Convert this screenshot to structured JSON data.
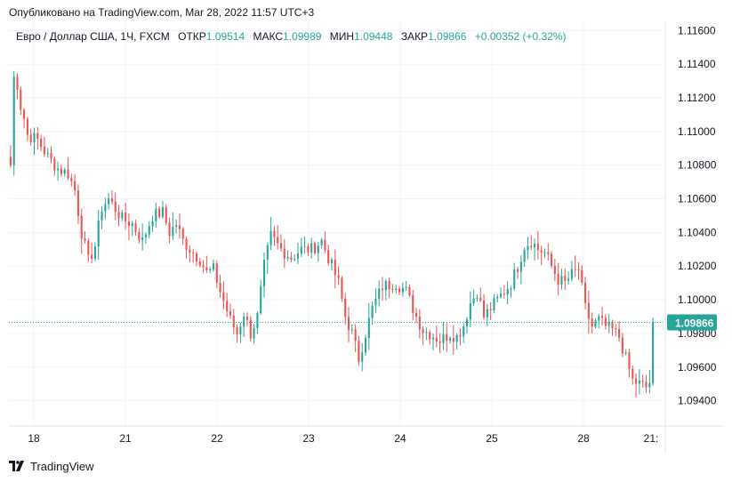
{
  "published_line": "Опубликовано на TradingView.com, Mar 28, 2022 11:57 UTC+3",
  "legend": {
    "symbol": "Евро / Доллар США, 1Ч, FXCM",
    "open_label": "ОТКР",
    "open_value": "1.09514",
    "high_label": "МАКС",
    "high_value": "1.09989",
    "low_label": "МИН",
    "low_value": "1.09448",
    "close_label": "ЗАКР",
    "close_value": "1.09866",
    "change": "+0.00352 (+0.32%)"
  },
  "last_price_label": "1.09866",
  "footer_brand": "TradingView",
  "colors": {
    "up": "#26a69a",
    "down": "#ef5350",
    "grid": "#f0f3fa",
    "axis_text": "#131722",
    "last_price_bg": "#26a69a"
  },
  "chart_data": {
    "type": "candlestick",
    "title": "Евро / Доллар США, 1Ч, FXCM",
    "y_ticks": [
      "1.09400",
      "1.09600",
      "1.09800",
      "1.10000",
      "1.10200",
      "1.10400",
      "1.10600",
      "1.10800",
      "1.11000",
      "1.11200",
      "1.11400",
      "1.11600"
    ],
    "x_ticks": [
      "18",
      "21",
      "22",
      "23",
      "24",
      "25",
      "28",
      "21:"
    ],
    "ylim": [
      1.0925,
      1.1166
    ],
    "last_price": 1.09866,
    "grid": true,
    "anchors": [
      [
        0,
        1.108
      ],
      [
        1,
        1.1132
      ],
      [
        2,
        1.1128
      ],
      [
        3,
        1.1115
      ],
      [
        4,
        1.1108
      ],
      [
        5,
        1.1098
      ],
      [
        8,
        1.1095
      ],
      [
        11,
        1.1085
      ],
      [
        14,
        1.1078
      ],
      [
        17,
        1.1075
      ],
      [
        19,
        1.1065
      ],
      [
        21,
        1.104
      ],
      [
        23,
        1.1023
      ],
      [
        25,
        1.1032
      ],
      [
        27,
        1.1055
      ],
      [
        29,
        1.106
      ],
      [
        33,
        1.1048
      ],
      [
        36,
        1.1045
      ],
      [
        39,
        1.1035
      ],
      [
        42,
        1.105
      ],
      [
        45,
        1.1052
      ],
      [
        47,
        1.104
      ],
      [
        49,
        1.1045
      ],
      [
        51,
        1.1035
      ],
      [
        54,
        1.1028
      ],
      [
        56,
        1.1024
      ],
      [
        58,
        1.1016
      ],
      [
        60,
        1.1018
      ],
      [
        62,
        1.1005
      ],
      [
        65,
        1.0988
      ],
      [
        67,
        1.098
      ],
      [
        69,
        1.0992
      ],
      [
        71,
        1.098
      ],
      [
        73,
        1.099
      ],
      [
        75,
        1.102
      ],
      [
        77,
        1.1038
      ],
      [
        80,
        1.103
      ],
      [
        83,
        1.1025
      ],
      [
        86,
        1.103
      ],
      [
        89,
        1.103
      ],
      [
        92,
        1.1035
      ],
      [
        94,
        1.1025
      ],
      [
        97,
        1.101
      ],
      [
        99,
        1.099
      ],
      [
        101,
        1.098
      ],
      [
        103,
        1.0965
      ],
      [
        105,
        1.098
      ],
      [
        107,
        1.0995
      ],
      [
        110,
        1.1008
      ],
      [
        114,
        1.101
      ],
      [
        117,
        1.1005
      ],
      [
        120,
        1.099
      ],
      [
        122,
        1.0982
      ],
      [
        124,
        1.098
      ],
      [
        127,
        1.0976
      ],
      [
        130,
        1.098
      ],
      [
        132,
        1.0978
      ],
      [
        134,
        1.0985
      ],
      [
        136,
        1.0998
      ],
      [
        138,
        1.1005
      ],
      [
        140,
        1.099
      ],
      [
        142,
        1.0995
      ],
      [
        144,
        1.1
      ],
      [
        146,
        1.1005
      ],
      [
        148,
        1.101
      ],
      [
        150,
        1.102
      ],
      [
        152,
        1.1032
      ],
      [
        154,
        1.1035
      ],
      [
        156,
        1.103
      ],
      [
        158,
        1.1028
      ],
      [
        160,
        1.102
      ],
      [
        162,
        1.1012
      ],
      [
        164,
        1.101
      ],
      [
        166,
        1.1015
      ],
      [
        168,
        1.1018
      ],
      [
        170,
        1.0995
      ],
      [
        172,
        1.0984
      ],
      [
        174,
        1.0988
      ],
      [
        176,
        1.0984
      ],
      [
        178,
        1.0982
      ],
      [
        180,
        1.0978
      ],
      [
        182,
        1.0965
      ],
      [
        184,
        1.0952
      ],
      [
        186,
        1.095
      ],
      [
        188,
        1.0948
      ],
      [
        189,
        1.0951
      ],
      [
        190,
        1.0987
      ]
    ]
  }
}
